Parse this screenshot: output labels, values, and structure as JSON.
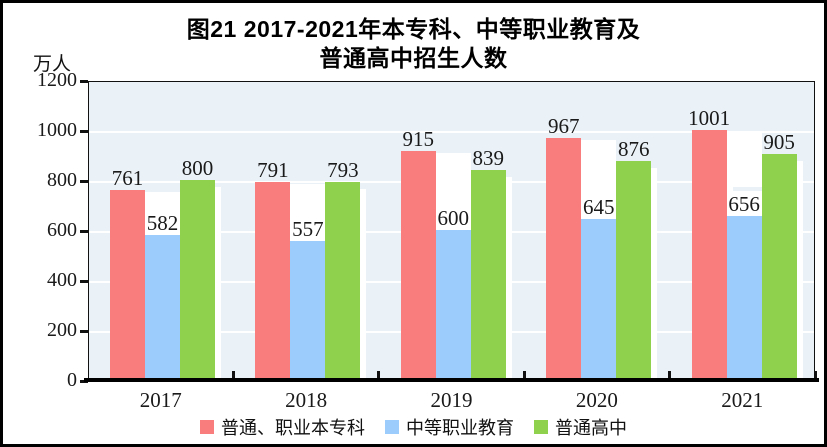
{
  "window": {
    "title_line1": "图21  2017-2021年本专科、中等职业教育及",
    "title_line2": "普通高中招生人数"
  },
  "y_axis_unit": "万人",
  "chart_data": {
    "type": "bar",
    "title": "图21 2017-2021年本专科、中等职业教育及普通高中招生人数",
    "ylabel": "万人",
    "xlabel": "",
    "categories": [
      "2017",
      "2018",
      "2019",
      "2020",
      "2021"
    ],
    "series": [
      {
        "name": "普通、职业本专科",
        "color": "#fa7d7d",
        "values": [
          761,
          791,
          915,
          967,
          1001
        ]
      },
      {
        "name": "中等职业教育",
        "color": "#9cccfb",
        "values": [
          582,
          557,
          600,
          645,
          656
        ]
      },
      {
        "name": "普通高中",
        "color": "#8fd04d",
        "values": [
          800,
          793,
          839,
          876,
          905
        ]
      }
    ],
    "ylim": [
      0,
      1200
    ],
    "ytick_step": 200,
    "ytick_labels": [
      "0",
      "200",
      "400",
      "600",
      "800",
      "1000",
      "1200"
    ],
    "grid": true,
    "gridline_color": "#ffffff",
    "plot_bg": "#eaf2f8",
    "legend_position": "bottom"
  }
}
